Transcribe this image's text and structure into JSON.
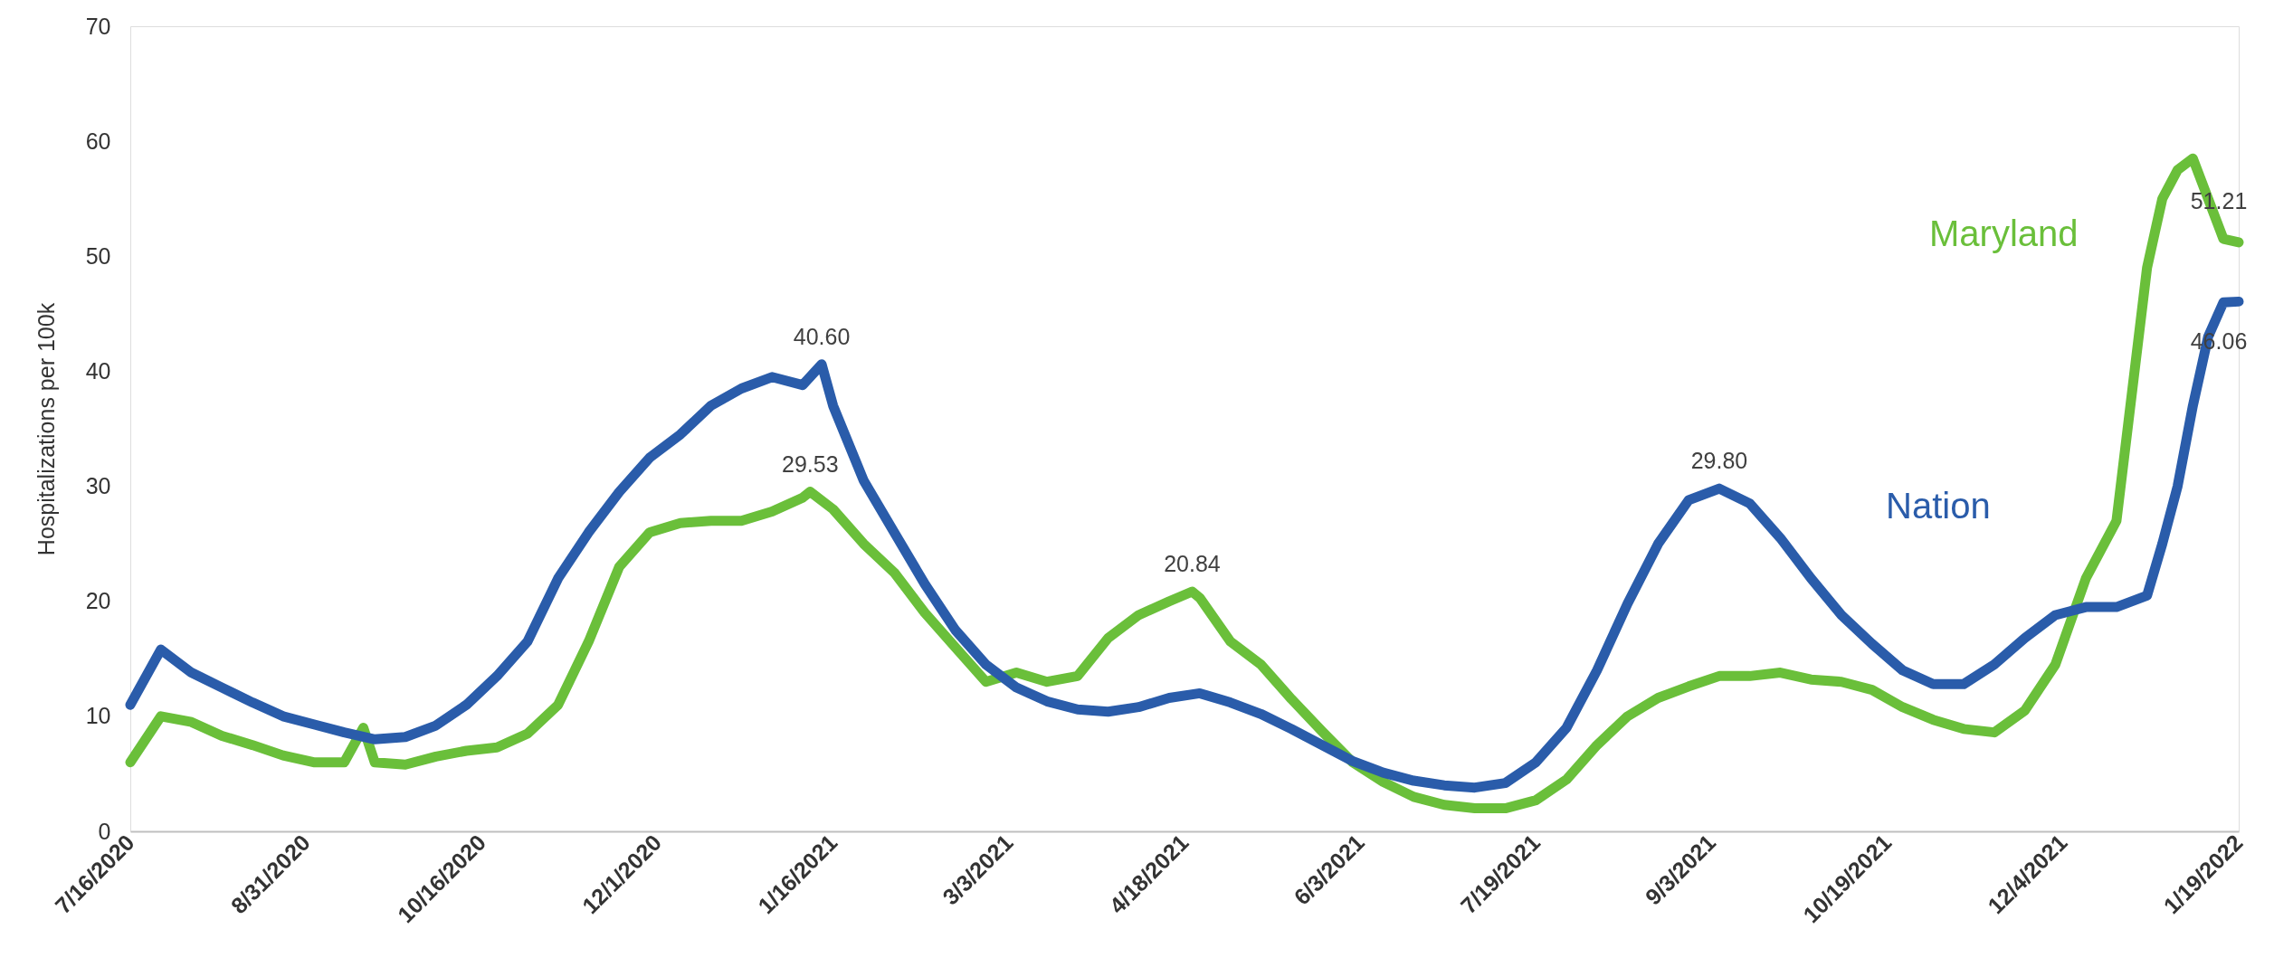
{
  "chart_data": {
    "type": "line",
    "ylabel": "Hospitalizations per 100k",
    "ylim": [
      0,
      70
    ],
    "yticks": [
      0,
      10,
      20,
      30,
      40,
      50,
      60,
      70
    ],
    "xlim": [
      "2020-07-16",
      "2022-01-19"
    ],
    "xticks": [
      {
        "value": "2020-07-16",
        "label": "7/16/2020"
      },
      {
        "value": "2020-08-31",
        "label": "8/31/2020"
      },
      {
        "value": "2020-10-16",
        "label": "10/16/2020"
      },
      {
        "value": "2020-12-01",
        "label": "12/1/2020"
      },
      {
        "value": "2021-01-16",
        "label": "1/16/2021"
      },
      {
        "value": "2021-03-03",
        "label": "3/3/2021"
      },
      {
        "value": "2021-04-18",
        "label": "4/18/2021"
      },
      {
        "value": "2021-06-03",
        "label": "6/3/2021"
      },
      {
        "value": "2021-07-19",
        "label": "7/19/2021"
      },
      {
        "value": "2021-09-03",
        "label": "9/3/2021"
      },
      {
        "value": "2021-10-19",
        "label": "10/19/2021"
      },
      {
        "value": "2021-12-04",
        "label": "12/4/2021"
      },
      {
        "value": "2022-01-19",
        "label": "1/19/2022"
      }
    ],
    "series": [
      {
        "name": "Maryland",
        "color": "#6abf3a",
        "x": [
          "2020-07-16",
          "2020-07-24",
          "2020-08-01",
          "2020-08-09",
          "2020-08-17",
          "2020-08-25",
          "2020-09-02",
          "2020-09-10",
          "2020-09-15",
          "2020-09-18",
          "2020-09-26",
          "2020-10-04",
          "2020-10-12",
          "2020-10-20",
          "2020-10-28",
          "2020-11-05",
          "2020-11-13",
          "2020-11-21",
          "2020-11-29",
          "2020-12-07",
          "2020-12-15",
          "2020-12-23",
          "2020-12-31",
          "2021-01-08",
          "2021-01-10",
          "2021-01-16",
          "2021-01-24",
          "2021-02-01",
          "2021-02-09",
          "2021-02-17",
          "2021-02-25",
          "2021-03-05",
          "2021-03-13",
          "2021-03-21",
          "2021-03-29",
          "2021-04-06",
          "2021-04-14",
          "2021-04-20",
          "2021-04-22",
          "2021-04-30",
          "2021-05-08",
          "2021-05-16",
          "2021-05-24",
          "2021-06-01",
          "2021-06-09",
          "2021-06-17",
          "2021-06-25",
          "2021-07-03",
          "2021-07-11",
          "2021-07-19",
          "2021-07-27",
          "2021-08-04",
          "2021-08-12",
          "2021-08-20",
          "2021-08-28",
          "2021-09-05",
          "2021-09-13",
          "2021-09-21",
          "2021-09-29",
          "2021-10-07",
          "2021-10-15",
          "2021-10-23",
          "2021-10-31",
          "2021-11-08",
          "2021-11-16",
          "2021-11-24",
          "2021-12-02",
          "2021-12-10",
          "2021-12-18",
          "2021-12-22",
          "2021-12-26",
          "2021-12-30",
          "2022-01-03",
          "2022-01-07",
          "2022-01-11",
          "2022-01-15",
          "2022-01-19"
        ],
        "values": [
          6,
          10,
          9.5,
          8.3,
          7.5,
          6.6,
          6,
          6,
          9,
          6,
          5.8,
          6.5,
          7,
          7.3,
          8.5,
          11,
          16.5,
          23,
          26,
          26.8,
          27,
          27,
          27.8,
          29,
          29.53,
          28,
          25,
          22.5,
          19,
          16,
          13,
          13.8,
          13,
          13.5,
          16.8,
          18.8,
          20,
          20.84,
          20.3,
          16.5,
          14.5,
          11.5,
          8.7,
          6,
          4.3,
          3,
          2.3,
          2,
          2,
          2.7,
          4.5,
          7.5,
          10,
          11.6,
          12.6,
          13.5,
          13.5,
          13.8,
          13.2,
          13,
          12.3,
          10.8,
          9.7,
          8.9,
          8.6,
          10.5,
          14.5,
          22,
          27,
          38,
          49,
          55,
          57.5,
          58.5,
          55,
          51.5,
          51.21
        ]
      },
      {
        "name": "Nation",
        "color": "#2a5caa",
        "x": [
          "2020-07-16",
          "2020-07-24",
          "2020-08-01",
          "2020-08-09",
          "2020-08-17",
          "2020-08-25",
          "2020-09-02",
          "2020-09-10",
          "2020-09-18",
          "2020-09-26",
          "2020-10-04",
          "2020-10-12",
          "2020-10-20",
          "2020-10-28",
          "2020-11-05",
          "2020-11-13",
          "2020-11-21",
          "2020-11-29",
          "2020-12-07",
          "2020-12-15",
          "2020-12-23",
          "2020-12-31",
          "2021-01-08",
          "2021-01-13",
          "2021-01-16",
          "2021-01-24",
          "2021-02-01",
          "2021-02-09",
          "2021-02-17",
          "2021-02-25",
          "2021-03-05",
          "2021-03-13",
          "2021-03-21",
          "2021-03-29",
          "2021-04-06",
          "2021-04-14",
          "2021-04-22",
          "2021-04-30",
          "2021-05-08",
          "2021-05-16",
          "2021-05-24",
          "2021-06-01",
          "2021-06-09",
          "2021-06-17",
          "2021-06-25",
          "2021-07-03",
          "2021-07-11",
          "2021-07-19",
          "2021-07-27",
          "2021-08-04",
          "2021-08-12",
          "2021-08-20",
          "2021-08-28",
          "2021-09-05",
          "2021-09-13",
          "2021-09-21",
          "2021-09-29",
          "2021-10-07",
          "2021-10-15",
          "2021-10-23",
          "2021-10-31",
          "2021-11-08",
          "2021-11-16",
          "2021-11-24",
          "2021-12-02",
          "2021-12-10",
          "2021-12-18",
          "2021-12-26",
          "2021-12-30",
          "2022-01-03",
          "2022-01-07",
          "2022-01-11",
          "2022-01-15",
          "2022-01-19"
        ],
        "values": [
          11,
          15.8,
          13.8,
          12.5,
          11.2,
          10,
          9.3,
          8.6,
          8,
          8.2,
          9.2,
          11,
          13.5,
          16.5,
          22,
          26,
          29.5,
          32.5,
          34.5,
          37,
          38.5,
          39.5,
          38.8,
          40.6,
          37,
          30.5,
          26,
          21.5,
          17.5,
          14.5,
          12.5,
          11.3,
          10.6,
          10.4,
          10.8,
          11.6,
          12,
          11.2,
          10.2,
          8.9,
          7.5,
          6.1,
          5.1,
          4.4,
          4,
          3.8,
          4.2,
          6,
          9,
          14,
          19.8,
          25,
          28.8,
          29.8,
          28.5,
          25.5,
          22,
          18.8,
          16.3,
          14,
          12.8,
          12.8,
          14.5,
          16.8,
          18.8,
          19.5,
          19.5,
          20.5,
          25,
          30,
          37,
          43,
          46,
          46.06
        ]
      }
    ],
    "annotations": [
      {
        "text": "40.60",
        "x": "2021-01-13",
        "y": 40.6
      },
      {
        "text": "29.53",
        "x": "2021-01-10",
        "y": 29.53
      },
      {
        "text": "20.84",
        "x": "2021-04-20",
        "y": 20.84
      },
      {
        "text": "29.80",
        "x": "2021-09-05",
        "y": 29.8
      },
      {
        "text": "51.21",
        "x": "2022-01-19",
        "y": 51.21
      },
      {
        "text": "46.06",
        "x": "2022-01-19",
        "y": 46.06
      }
    ]
  }
}
